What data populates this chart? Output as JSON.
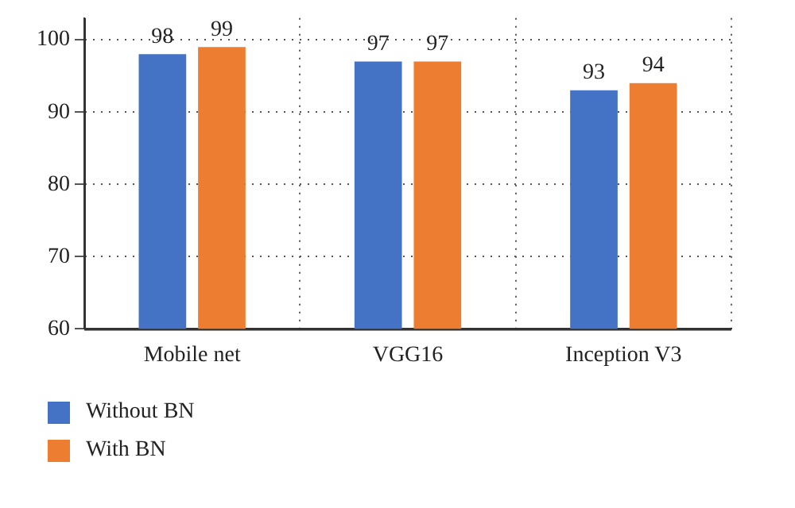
{
  "chart_data": {
    "type": "bar",
    "categories": [
      "Mobile net",
      "VGG16",
      "Inception V3"
    ],
    "series": [
      {
        "name": "Without BN",
        "color": "#4472c4",
        "values": [
          98,
          97,
          93
        ]
      },
      {
        "name": "With BN",
        "color": "#ed7d31",
        "values": [
          99,
          97,
          94
        ]
      }
    ],
    "ylim": [
      60,
      103
    ],
    "yticks": [
      60,
      70,
      80,
      90,
      100
    ],
    "grid": true,
    "legend": "bottom left",
    "data_labels": true
  }
}
